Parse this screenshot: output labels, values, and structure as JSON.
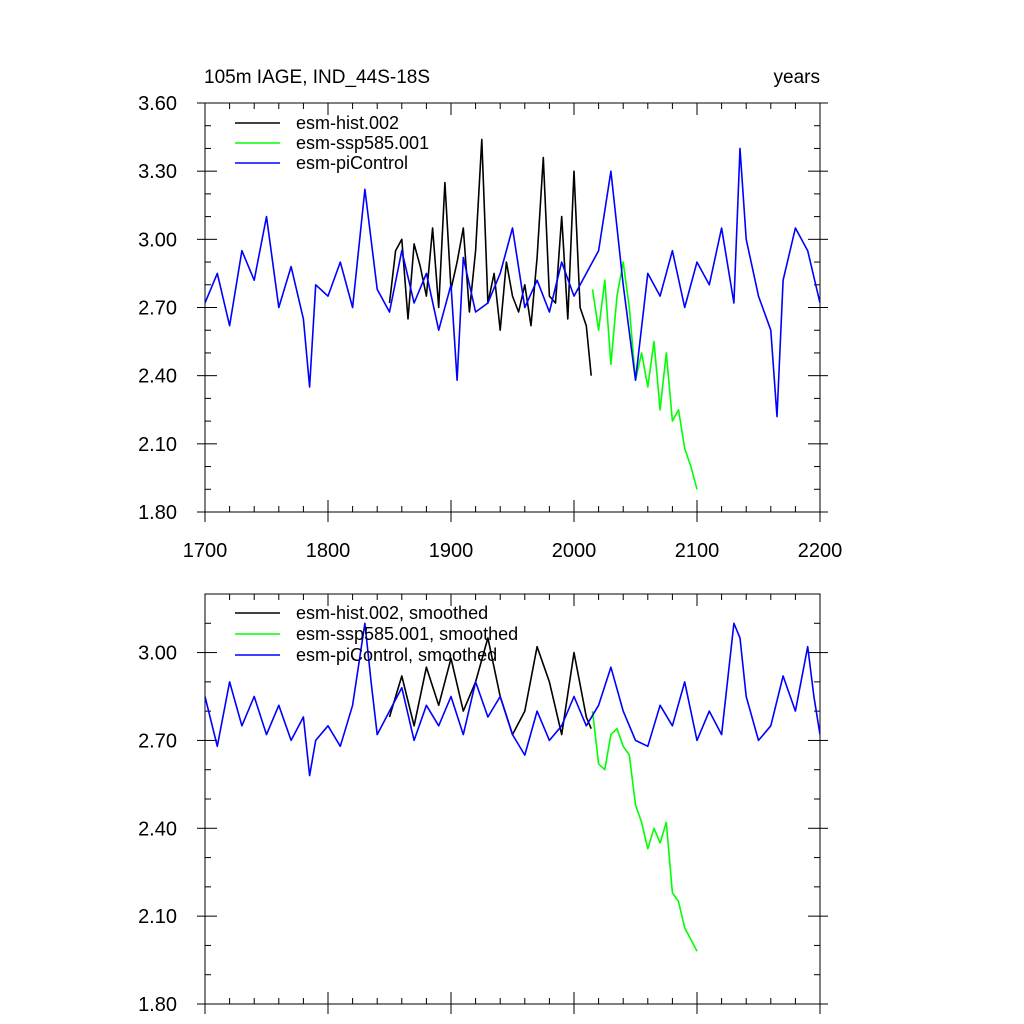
{
  "chart_data": [
    {
      "type": "line",
      "title": "105m IAGE, IND_44S-18S",
      "units": "years",
      "xlim": [
        1700,
        2200
      ],
      "ylim": [
        1.8,
        3.6
      ],
      "xticks": [
        "1700",
        "1800",
        "1900",
        "2000",
        "2100",
        "2200"
      ],
      "yticks": [
        "1.80",
        "2.10",
        "2.40",
        "2.70",
        "3.00",
        "3.30",
        "3.60"
      ],
      "legend": {
        "position": "top-left"
      },
      "series": [
        {
          "name": "esm-hist.002",
          "color": "#000000",
          "x": [
            1850,
            1855,
            1860,
            1865,
            1870,
            1875,
            1880,
            1885,
            1890,
            1895,
            1900,
            1905,
            1910,
            1915,
            1920,
            1925,
            1930,
            1935,
            1940,
            1945,
            1950,
            1955,
            1960,
            1965,
            1970,
            1975,
            1980,
            1985,
            1990,
            1995,
            2000,
            2005,
            2010,
            2014
          ],
          "y": [
            2.72,
            2.95,
            3.0,
            2.65,
            2.98,
            2.88,
            2.75,
            3.05,
            2.7,
            3.25,
            2.78,
            2.9,
            3.05,
            2.68,
            2.95,
            3.44,
            2.72,
            2.85,
            2.6,
            2.9,
            2.75,
            2.68,
            2.8,
            2.62,
            2.92,
            3.36,
            2.75,
            2.72,
            3.1,
            2.65,
            3.3,
            2.7,
            2.62,
            2.4
          ]
        },
        {
          "name": "esm-ssp585.001",
          "color": "#00ff00",
          "x": [
            2015,
            2020,
            2025,
            2030,
            2035,
            2040,
            2045,
            2050,
            2055,
            2060,
            2065,
            2070,
            2075,
            2080,
            2085,
            2090,
            2095,
            2100
          ],
          "y": [
            2.78,
            2.6,
            2.82,
            2.45,
            2.75,
            2.9,
            2.7,
            2.38,
            2.5,
            2.35,
            2.55,
            2.25,
            2.5,
            2.2,
            2.25,
            2.08,
            2.0,
            1.9
          ]
        },
        {
          "name": "esm-piControl",
          "color": "#0000ff",
          "x": [
            1700,
            1710,
            1720,
            1730,
            1740,
            1750,
            1760,
            1770,
            1780,
            1785,
            1790,
            1800,
            1810,
            1820,
            1830,
            1840,
            1850,
            1860,
            1870,
            1880,
            1890,
            1900,
            1905,
            1910,
            1920,
            1930,
            1940,
            1950,
            1960,
            1970,
            1980,
            1990,
            2000,
            2010,
            2020,
            2030,
            2040,
            2050,
            2060,
            2070,
            2080,
            2090,
            2100,
            2110,
            2120,
            2130,
            2135,
            2140,
            2150,
            2160,
            2165,
            2170,
            2180,
            2190,
            2200
          ],
          "y": [
            2.72,
            2.85,
            2.62,
            2.95,
            2.82,
            3.1,
            2.7,
            2.88,
            2.65,
            2.35,
            2.8,
            2.75,
            2.9,
            2.7,
            3.22,
            2.78,
            2.68,
            2.95,
            2.72,
            2.85,
            2.6,
            2.8,
            2.38,
            2.92,
            2.68,
            2.72,
            2.85,
            3.05,
            2.7,
            2.82,
            2.68,
            2.9,
            2.75,
            2.85,
            2.95,
            3.3,
            2.8,
            2.38,
            2.85,
            2.75,
            2.95,
            2.7,
            2.9,
            2.8,
            3.05,
            2.72,
            3.4,
            3.0,
            2.75,
            2.6,
            2.22,
            2.82,
            3.05,
            2.95,
            2.72
          ]
        }
      ]
    },
    {
      "type": "line",
      "title": "",
      "xlim": [
        1700,
        2200
      ],
      "ylim": [
        1.8,
        3.2
      ],
      "yticks": [
        "1.80",
        "2.10",
        "2.40",
        "2.70",
        "3.00"
      ],
      "legend": {
        "position": "top-left"
      },
      "series": [
        {
          "name": "esm-hist.002, smoothed",
          "color": "#000000",
          "x": [
            1850,
            1860,
            1870,
            1880,
            1890,
            1900,
            1910,
            1920,
            1930,
            1940,
            1950,
            1960,
            1970,
            1980,
            1990,
            2000,
            2010,
            2014
          ],
          "y": [
            2.78,
            2.92,
            2.75,
            2.95,
            2.82,
            2.98,
            2.8,
            2.9,
            3.05,
            2.85,
            2.72,
            2.8,
            3.02,
            2.9,
            2.72,
            3.0,
            2.78,
            2.74
          ]
        },
        {
          "name": "esm-ssp585.001, smoothed",
          "color": "#00ff00",
          "x": [
            2015,
            2020,
            2025,
            2030,
            2035,
            2040,
            2045,
            2050,
            2055,
            2060,
            2065,
            2070,
            2075,
            2080,
            2085,
            2090,
            2095,
            2100
          ],
          "y": [
            2.8,
            2.62,
            2.6,
            2.72,
            2.74,
            2.68,
            2.65,
            2.48,
            2.42,
            2.33,
            2.4,
            2.35,
            2.42,
            2.18,
            2.15,
            2.06,
            2.02,
            1.98
          ]
        },
        {
          "name": "esm-piControl, smoothed",
          "color": "#0000ff",
          "x": [
            1700,
            1710,
            1720,
            1730,
            1740,
            1750,
            1760,
            1770,
            1780,
            1785,
            1790,
            1800,
            1810,
            1820,
            1830,
            1835,
            1840,
            1850,
            1860,
            1870,
            1880,
            1890,
            1900,
            1910,
            1920,
            1930,
            1940,
            1950,
            1960,
            1970,
            1980,
            1990,
            2000,
            2010,
            2020,
            2030,
            2040,
            2050,
            2060,
            2070,
            2080,
            2090,
            2100,
            2110,
            2120,
            2130,
            2135,
            2140,
            2150,
            2160,
            2170,
            2180,
            2190,
            2195,
            2200
          ],
          "y": [
            2.85,
            2.68,
            2.9,
            2.75,
            2.85,
            2.72,
            2.82,
            2.7,
            2.78,
            2.58,
            2.7,
            2.75,
            2.68,
            2.82,
            3.1,
            2.9,
            2.72,
            2.8,
            2.88,
            2.7,
            2.82,
            2.75,
            2.85,
            2.72,
            2.9,
            2.78,
            2.85,
            2.72,
            2.65,
            2.8,
            2.7,
            2.75,
            2.85,
            2.75,
            2.82,
            2.95,
            2.8,
            2.7,
            2.68,
            2.82,
            2.75,
            2.9,
            2.7,
            2.8,
            2.72,
            3.1,
            3.05,
            2.85,
            2.7,
            2.75,
            2.92,
            2.8,
            3.02,
            2.85,
            2.72
          ]
        }
      ]
    }
  ]
}
